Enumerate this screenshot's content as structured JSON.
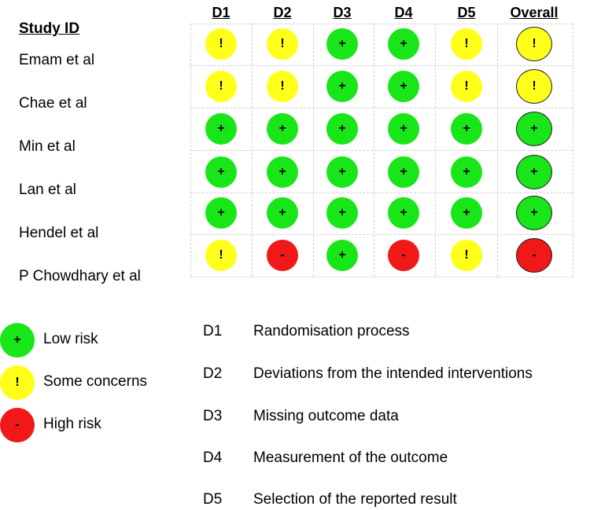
{
  "domain_headers": [
    "D1",
    "D2",
    "D3",
    "D4",
    "D5",
    "Overall"
  ],
  "study_id_title": "Study ID",
  "studies": [
    {
      "name": "Emam et al",
      "judgements": [
        "some",
        "some",
        "low",
        "low",
        "some"
      ],
      "overall": "some"
    },
    {
      "name": "Chae et al",
      "judgements": [
        "some",
        "some",
        "low",
        "low",
        "some"
      ],
      "overall": "some"
    },
    {
      "name": "Min et al",
      "judgements": [
        "low",
        "low",
        "low",
        "low",
        "low"
      ],
      "overall": "low"
    },
    {
      "name": "Lan et al",
      "judgements": [
        "low",
        "low",
        "low",
        "low",
        "low"
      ],
      "overall": "low"
    },
    {
      "name": "Hendel et al",
      "judgements": [
        "low",
        "low",
        "low",
        "low",
        "low"
      ],
      "overall": "low"
    },
    {
      "name": "P Chowdhary et al",
      "judgements": [
        "some",
        "high",
        "low",
        "high",
        "some"
      ],
      "overall": "high"
    }
  ],
  "symbols": {
    "low": "+",
    "some": "!",
    "high": "-"
  },
  "colors": {
    "low": "#19e619",
    "some": "#ffff1a",
    "high": "#f01818"
  },
  "legend": [
    {
      "level": "low",
      "label": "Low risk"
    },
    {
      "level": "some",
      "label": "Some concerns"
    },
    {
      "level": "high",
      "label": "High risk"
    }
  ],
  "domains": [
    {
      "code": "D1",
      "description": "Randomisation process"
    },
    {
      "code": "D2",
      "description": "Deviations from the intended interventions"
    },
    {
      "code": "D3",
      "description": "Missing outcome data"
    },
    {
      "code": "D4",
      "description": "Measurement of the outcome"
    },
    {
      "code": "D5",
      "description": "Selection of the reported result"
    }
  ]
}
